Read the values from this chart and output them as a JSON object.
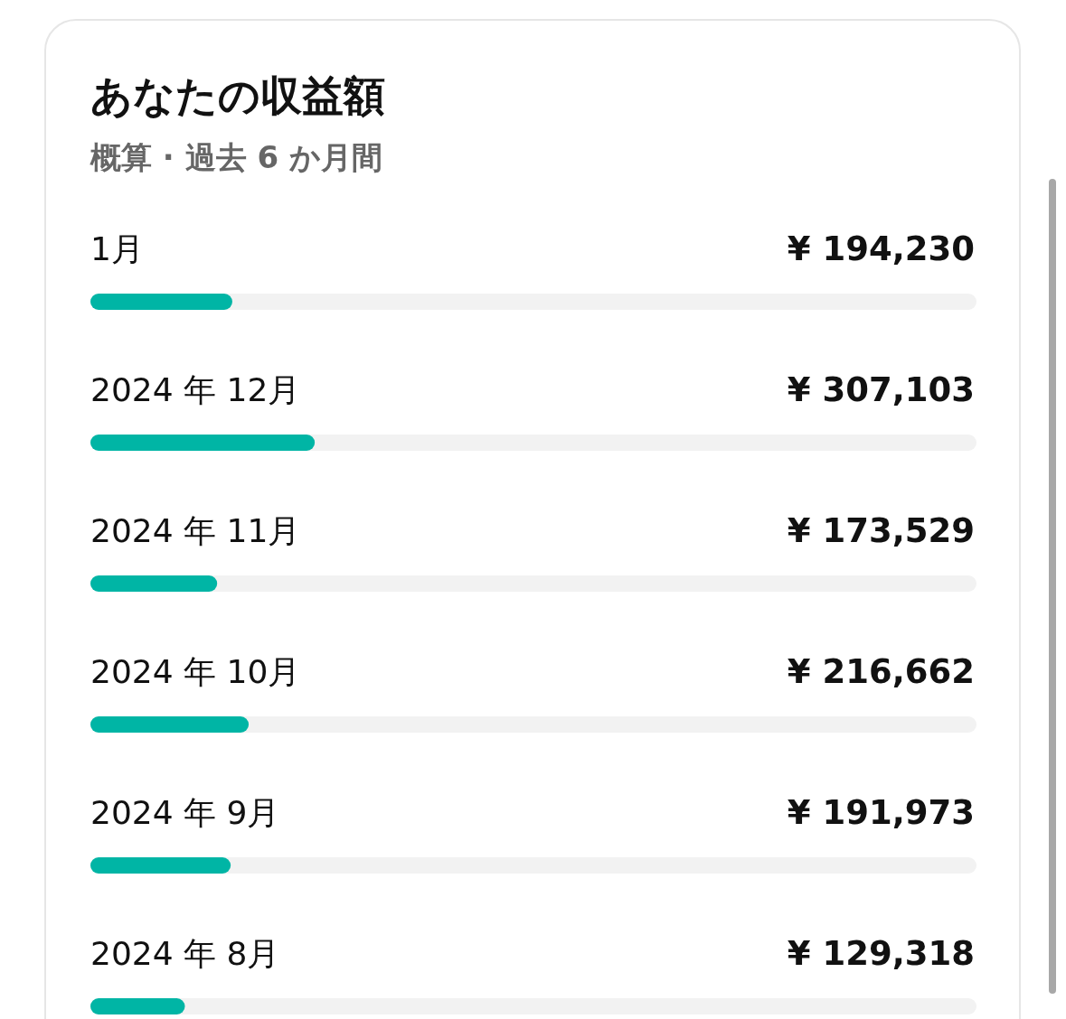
{
  "chart_data": {
    "type": "bar",
    "orientation": "horizontal",
    "title": "あなたの収益額",
    "subtitle": "概算 · 過去 6 か月間",
    "categories": [
      "1月",
      "2024 年 12月",
      "2024 年 11月",
      "2024 年 10月",
      "2024 年 9月",
      "2024 年 8月"
    ],
    "values": [
      194230,
      307103,
      173529,
      216662,
      191973,
      129318
    ],
    "value_labels": [
      "¥ 194,230",
      "¥ 307,103",
      "¥ 173,529",
      "¥ 216,662",
      "¥ 191,973",
      "¥ 129,318"
    ],
    "color": "#00b5a5",
    "xlim": [
      0,
      1212815
    ]
  }
}
